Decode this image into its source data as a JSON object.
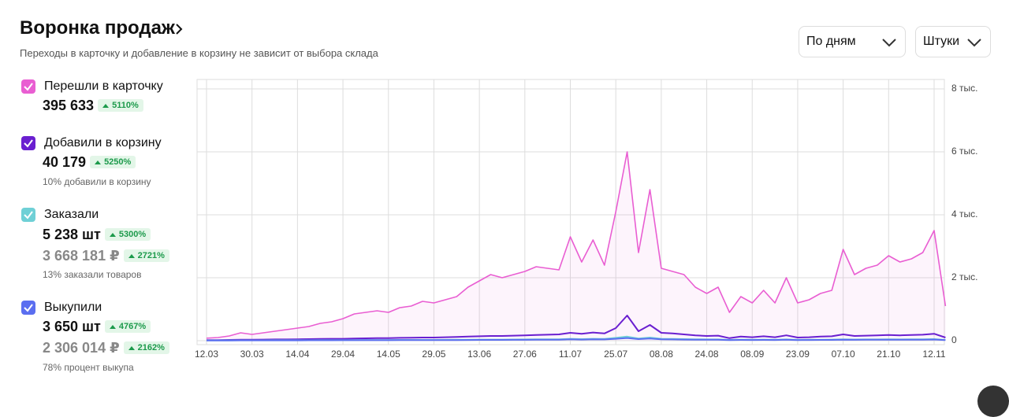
{
  "header": {
    "title": "Воронка продаж",
    "subtitle": "Переходы в карточку и добавление в корзину не зависит от выбора склада"
  },
  "controls": [
    "По дням",
    "Штуки"
  ],
  "metrics": [
    {
      "values": [
        {
          "amount": "395 633",
          "badge": "5110%"
        }
      ]
    },
    {
      "values": [
        {
          "amount": "40 179",
          "badge": "5250%"
        }
      ],
      "note": "10% добавили в корзину"
    },
    {
      "values": [
        {
          "amount": "5 238 шт",
          "badge": "5300%"
        },
        {
          "amount": "3 668 181 ₽",
          "badge": "2721%"
        }
      ],
      "note": "13% заказали товаров"
    },
    {
      "values": [
        {
          "amount": "3 650 шт",
          "badge": "4767%"
        },
        {
          "amount": "2 306 014 ₽",
          "badge": "2162%"
        }
      ],
      "note": "78% процент выкупа"
    }
  ],
  "chart_data": {
    "type": "line",
    "categories": [
      "12.03",
      null,
      null,
      null,
      "30.03",
      null,
      null,
      null,
      "14.04",
      null,
      null,
      null,
      "29.04",
      null,
      null,
      null,
      "14.05",
      null,
      null,
      null,
      "29.05",
      null,
      null,
      null,
      "13.06",
      null,
      null,
      null,
      "27.06",
      null,
      null,
      null,
      "11.07",
      null,
      null,
      null,
      "25.07",
      null,
      null,
      null,
      "08.08",
      null,
      null,
      null,
      "24.08",
      null,
      null,
      null,
      "08.09",
      null,
      null,
      null,
      "23.09",
      null,
      null,
      null,
      "07.10",
      null,
      null,
      null,
      "21.10",
      null,
      null,
      null,
      "12.11",
      null
    ],
    "series": [
      {
        "name": "Перешли в карточку",
        "color": "#e95ed2",
        "values": [
          80,
          100,
          150,
          250,
          200,
          250,
          300,
          350,
          400,
          450,
          550,
          600,
          700,
          850,
          900,
          950,
          900,
          1050,
          1100,
          1250,
          1200,
          1300,
          1400,
          1700,
          1900,
          2100,
          2000,
          2100,
          2200,
          2350,
          2300,
          2250,
          3300,
          2500,
          3200,
          2400,
          4100,
          6000,
          2800,
          4800,
          2300,
          2200,
          2100,
          1700,
          1500,
          1700,
          900,
          1400,
          1200,
          1600,
          1200,
          2000,
          1200,
          1300,
          1500,
          1600,
          2900,
          2100,
          2300,
          2400,
          2700,
          2500,
          2600,
          2800,
          3500,
          1100
        ]
      },
      {
        "name": "Добавили в корзину",
        "color": "#6a1fd0",
        "values": [
          20,
          20,
          25,
          30,
          30,
          35,
          40,
          40,
          45,
          50,
          55,
          60,
          60,
          70,
          75,
          80,
          80,
          90,
          95,
          100,
          100,
          110,
          120,
          130,
          140,
          150,
          150,
          160,
          170,
          180,
          190,
          200,
          250,
          220,
          260,
          230,
          400,
          800,
          300,
          500,
          250,
          230,
          200,
          170,
          150,
          160,
          80,
          130,
          110,
          140,
          110,
          170,
          100,
          110,
          130,
          140,
          200,
          150,
          160,
          170,
          180,
          170,
          180,
          190,
          220,
          100
        ]
      },
      {
        "name": "Заказали",
        "color": "#6fd0d6",
        "values": [
          10,
          10,
          10,
          12,
          12,
          12,
          14,
          15,
          15,
          16,
          18,
          18,
          20,
          20,
          22,
          22,
          22,
          24,
          25,
          26,
          26,
          28,
          30,
          32,
          34,
          36,
          36,
          38,
          40,
          42,
          44,
          46,
          60,
          50,
          60,
          55,
          90,
          130,
          70,
          100,
          60,
          55,
          50,
          45,
          40,
          40,
          25,
          35,
          30,
          35,
          30,
          40,
          28,
          30,
          32,
          34,
          45,
          38,
          40,
          40,
          42,
          40,
          42,
          44,
          50,
          25
        ]
      },
      {
        "name": "Выкупили",
        "color": "#5b6ef0",
        "values": [
          8,
          8,
          8,
          9,
          9,
          9,
          10,
          11,
          11,
          12,
          13,
          13,
          14,
          14,
          15,
          15,
          16,
          17,
          17,
          18,
          18,
          20,
          21,
          22,
          24,
          25,
          25,
          27,
          28,
          30,
          31,
          33,
          42,
          36,
          42,
          39,
          60,
          85,
          50,
          70,
          44,
          40,
          36,
          33,
          30,
          30,
          20,
          26,
          23,
          26,
          23,
          30,
          21,
          23,
          24,
          26,
          33,
          28,
          30,
          30,
          31,
          30,
          31,
          33,
          37,
          20
        ]
      }
    ],
    "ylim": [
      0,
      8000
    ],
    "yticks": [
      0,
      {
        "value": 2000,
        "label": "2 тыс."
      },
      {
        "value": 4000,
        "label": "4 тыс."
      },
      {
        "value": 6000,
        "label": "6 тыс."
      },
      {
        "value": 8000,
        "label": "8 тыс."
      }
    ],
    "grid": true,
    "fill_first": true
  }
}
